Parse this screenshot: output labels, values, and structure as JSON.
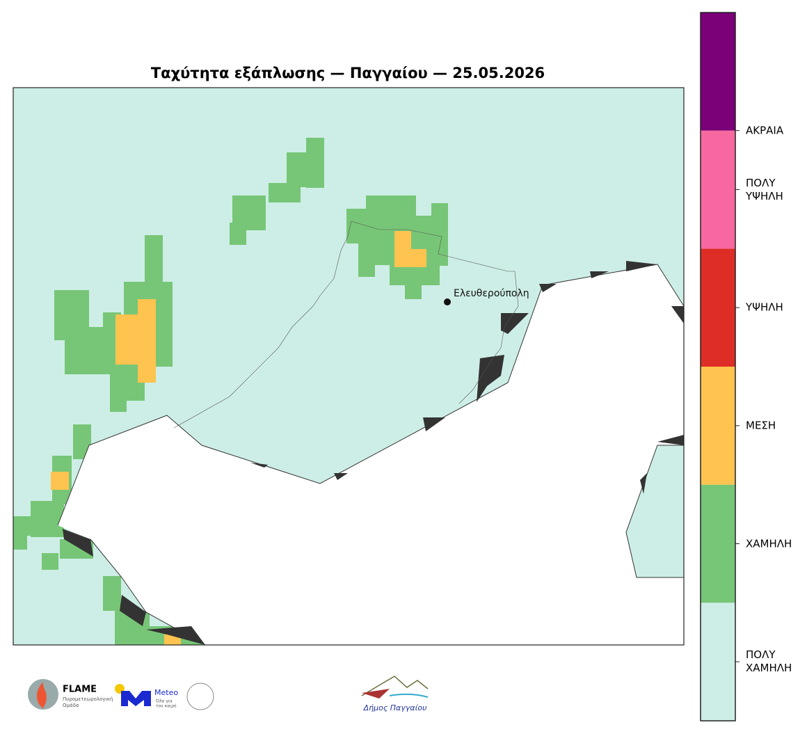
{
  "title": "Ταχύτητα εξάπλωσης — Παγγαίου — 25.05.2026",
  "map": {
    "city": "Ελευθερούπολη"
  },
  "colorbar": {
    "colors": [
      "#cdeee6",
      "#77c677",
      "#ffc34f",
      "#de2d26",
      "#f768a1",
      "#7a0177"
    ],
    "labels": [
      "ΠΟΛΥ ΧΑΜΗΛΗ",
      "ΧΑΜΗΛΗ",
      "ΜΕΣΗ",
      "ΥΨΗΛΗ",
      "ΠΟΛΥ ΥΨΗΛΗ",
      "ΑΚΡΑΙΑ"
    ]
  },
  "logos": {
    "flame": "FLAME",
    "flame_sub1": "Πυρομετεωρολογική",
    "flame_sub2": "Ομάδα",
    "meteo": "Meteo",
    "meteo_sub1": "Όλα για",
    "meteo_sub2": "τον καιρό",
    "municipality": "Δήμος Παγγαίου"
  }
}
